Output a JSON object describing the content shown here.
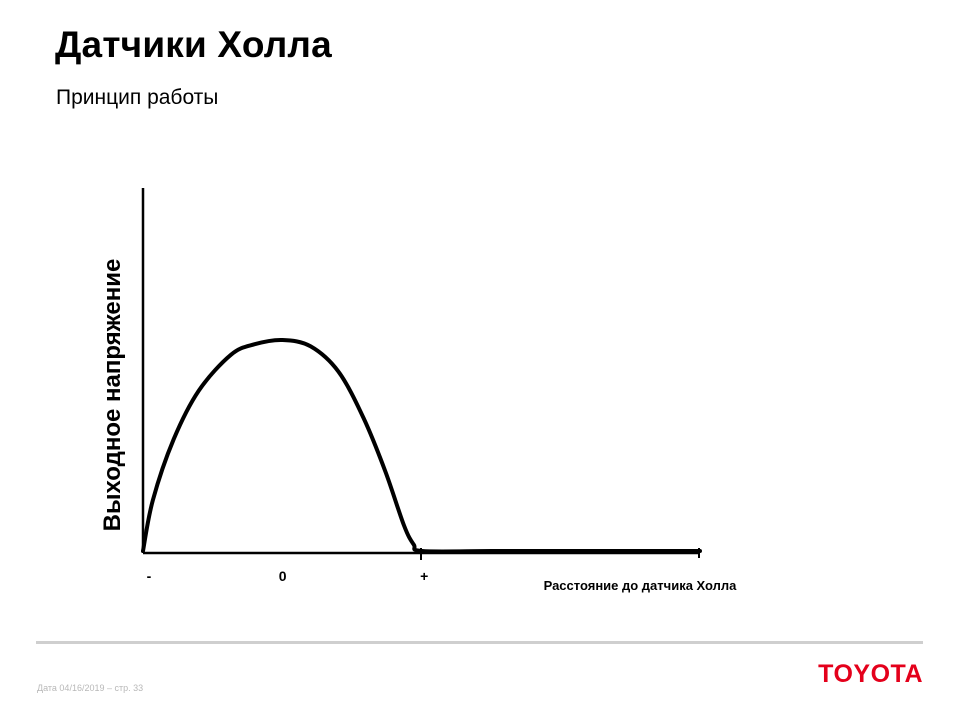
{
  "slide": {
    "title": "Датчики Холла",
    "subtitle": "Принцип работы"
  },
  "chart_data": {
    "type": "line",
    "title": "",
    "xlabel": "Расстояние до датчика Холла",
    "ylabel": "Выходное напряжение",
    "x_ticks": [
      "-",
      "0",
      "+"
    ],
    "x_tick_values": [
      -1,
      0,
      1
    ],
    "xlim": [
      -1,
      2.99
    ],
    "ylim": [
      0,
      1
    ],
    "grid": false,
    "series": [
      {
        "x": [
          -1.0,
          -0.93,
          -0.78,
          -0.6,
          -0.37,
          -0.2,
          0.0,
          0.2,
          0.4,
          0.58,
          0.74,
          0.87,
          0.94,
          1.0,
          1.5,
          2.0,
          2.99
        ],
        "y": [
          0.0,
          0.24,
          0.53,
          0.76,
          0.93,
          0.98,
          1.0,
          0.97,
          0.85,
          0.63,
          0.37,
          0.12,
          0.03,
          0.0,
          0.0,
          0.0,
          0.0
        ]
      }
    ]
  },
  "footer": {
    "text": "Дата 04/16/2019 – стр.  33",
    "logo": "TOYOTA"
  },
  "colors": {
    "logo": "#e4001b",
    "footer_line": "#cfcfcf",
    "footer_text": "#b8b8b8"
  }
}
